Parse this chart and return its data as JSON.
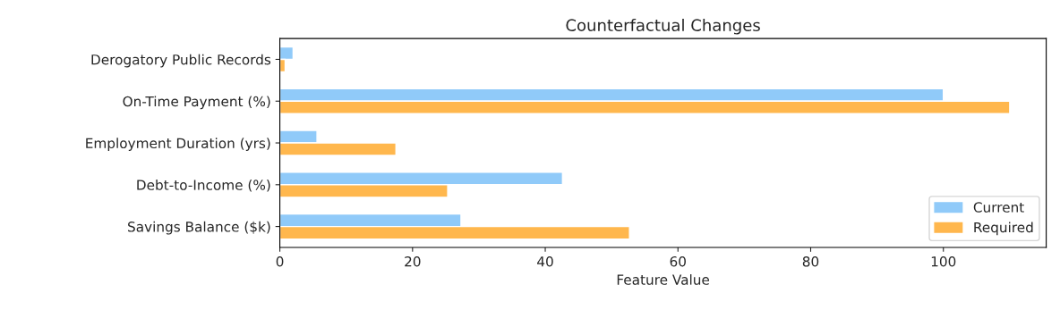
{
  "chart_data": {
    "type": "bar",
    "orientation": "horizontal",
    "title": "Counterfactual Changes",
    "xlabel": "Feature Value",
    "categories": [
      "Derogatory Public Records",
      "On-Time Payment (%)",
      "Employment Duration (yrs)",
      "Debt-to-Income (%)",
      "Savings Balance ($k)"
    ],
    "series": [
      {
        "name": "Current",
        "color": "#90caf9",
        "values": [
          2,
          100,
          5.6,
          42.6,
          27.3
        ]
      },
      {
        "name": "Required",
        "color": "#ffb74d",
        "values": [
          0.8,
          110,
          17.5,
          25.3,
          52.7
        ]
      }
    ],
    "xlim": [
      0,
      115.5
    ],
    "xticks": [
      0,
      20,
      40,
      60,
      80,
      100
    ],
    "grid": false,
    "legend": "bottom right"
  }
}
